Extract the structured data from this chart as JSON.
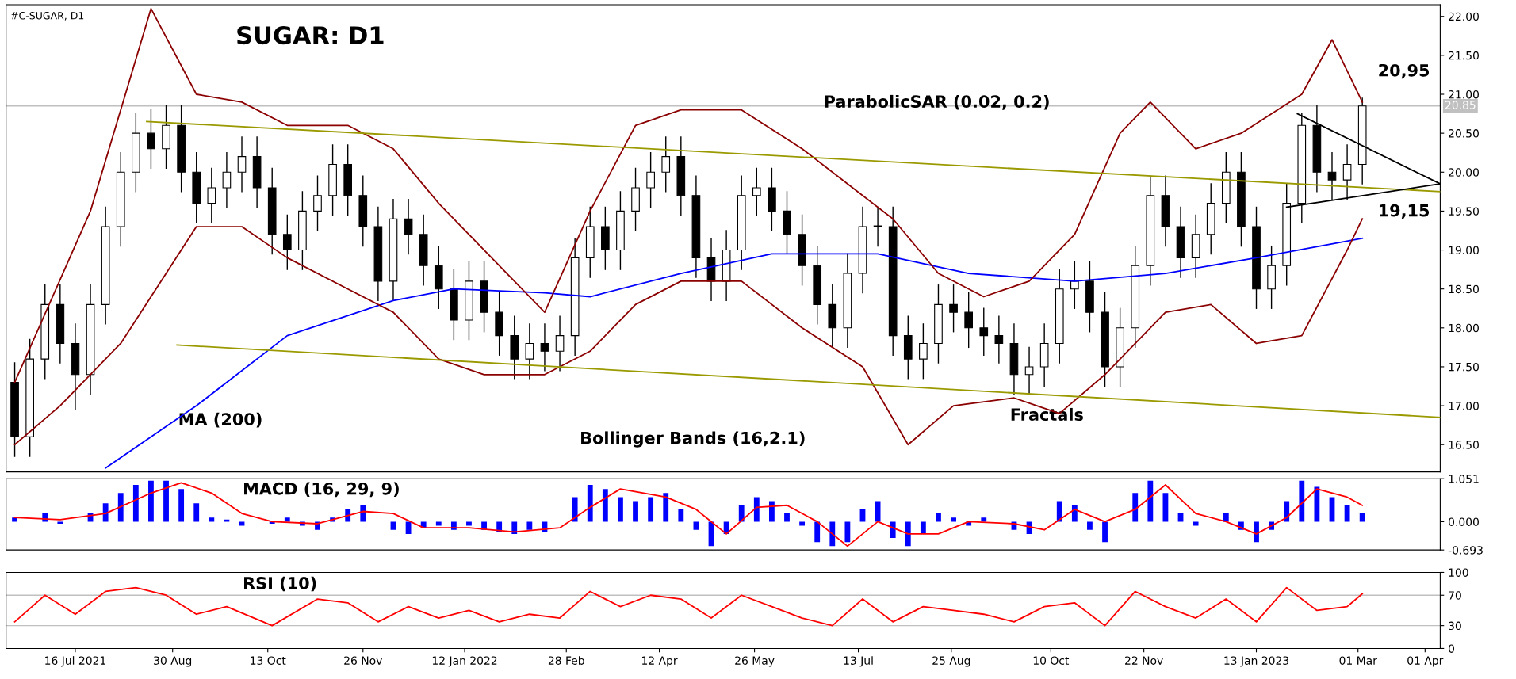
{
  "chart_data": [
    {
      "type": "candlestick",
      "title": "SUGAR: D1",
      "subtitle": "#C-SUGAR, D1",
      "x": [
        "2021-06-18",
        "2021-06-25",
        "2021-07-02",
        "2021-07-09",
        "2021-07-16",
        "2021-07-23",
        "2021-07-30",
        "2021-08-06",
        "2021-08-13",
        "2021-08-20",
        "2021-08-27",
        "2021-09-03",
        "2021-09-10",
        "2021-09-17",
        "2021-09-24",
        "2021-10-01",
        "2021-10-08",
        "2021-10-15",
        "2021-10-22",
        "2021-10-29",
        "2021-11-05",
        "2021-11-12",
        "2021-11-19",
        "2021-11-26",
        "2021-12-03",
        "2021-12-10",
        "2021-12-17",
        "2021-12-24",
        "2021-12-31",
        "2022-01-07",
        "2022-01-14",
        "2022-01-21",
        "2022-01-28",
        "2022-02-04",
        "2022-02-11",
        "2022-02-18",
        "2022-02-25",
        "2022-03-04",
        "2022-03-11",
        "2022-03-18",
        "2022-03-25",
        "2022-04-01",
        "2022-04-08",
        "2022-04-15",
        "2022-04-22",
        "2022-04-29",
        "2022-05-06",
        "2022-05-13",
        "2022-05-20",
        "2022-05-27",
        "2022-06-03",
        "2022-06-10",
        "2022-06-17",
        "2022-06-24",
        "2022-07-01",
        "2022-07-08",
        "2022-07-15",
        "2022-07-22",
        "2022-07-29",
        "2022-08-05",
        "2022-08-12",
        "2022-08-19",
        "2022-08-26",
        "2022-09-02",
        "2022-09-09",
        "2022-09-16",
        "2022-09-23",
        "2022-09-30",
        "2022-10-07",
        "2022-10-14",
        "2022-10-21",
        "2022-10-28",
        "2022-11-04",
        "2022-11-11",
        "2022-11-18",
        "2022-11-25",
        "2022-12-02",
        "2022-12-09",
        "2022-12-16",
        "2022-12-23",
        "2022-12-30",
        "2023-01-06",
        "2023-01-13",
        "2023-01-20",
        "2023-01-27",
        "2023-02-03",
        "2023-02-10",
        "2023-02-17",
        "2023-02-24",
        "2023-03-03"
      ],
      "ohlc": [
        [
          17.3,
          17.55,
          16.35,
          16.6
        ],
        [
          16.6,
          17.85,
          16.35,
          17.6
        ],
        [
          17.6,
          18.55,
          17.35,
          18.3
        ],
        [
          18.3,
          18.55,
          17.55,
          17.8
        ],
        [
          17.8,
          18.05,
          16.95,
          17.4
        ],
        [
          17.4,
          18.55,
          17.15,
          18.3
        ],
        [
          18.3,
          19.55,
          18.05,
          19.3
        ],
        [
          19.3,
          20.25,
          19.05,
          20.0
        ],
        [
          20.0,
          20.75,
          19.75,
          20.5
        ],
        [
          20.5,
          20.8,
          20.05,
          20.3
        ],
        [
          20.3,
          20.85,
          20.05,
          20.6
        ],
        [
          20.6,
          20.85,
          19.75,
          20.0
        ],
        [
          20.0,
          20.25,
          19.35,
          19.6
        ],
        [
          19.6,
          20.05,
          19.35,
          19.8
        ],
        [
          19.8,
          20.25,
          19.55,
          20.0
        ],
        [
          20.0,
          20.45,
          19.75,
          20.2
        ],
        [
          20.2,
          20.45,
          19.55,
          19.8
        ],
        [
          19.8,
          20.05,
          18.95,
          19.2
        ],
        [
          19.2,
          19.45,
          18.75,
          19.0
        ],
        [
          19.0,
          19.75,
          18.75,
          19.5
        ],
        [
          19.5,
          19.95,
          19.25,
          19.7
        ],
        [
          19.7,
          20.35,
          19.45,
          20.1
        ],
        [
          20.1,
          20.35,
          19.45,
          19.7
        ],
        [
          19.7,
          19.95,
          19.05,
          19.3
        ],
        [
          19.3,
          19.55,
          18.35,
          18.6
        ],
        [
          18.6,
          19.65,
          18.35,
          19.4
        ],
        [
          19.4,
          19.65,
          18.95,
          19.2
        ],
        [
          19.2,
          19.45,
          18.55,
          18.8
        ],
        [
          18.8,
          19.05,
          18.25,
          18.5
        ],
        [
          18.5,
          18.75,
          17.85,
          18.1
        ],
        [
          18.1,
          18.85,
          17.85,
          18.6
        ],
        [
          18.6,
          18.85,
          17.95,
          18.2
        ],
        [
          18.2,
          18.45,
          17.65,
          17.9
        ],
        [
          17.9,
          18.15,
          17.35,
          17.6
        ],
        [
          17.6,
          18.05,
          17.35,
          17.8
        ],
        [
          17.8,
          18.05,
          17.45,
          17.7
        ],
        [
          17.7,
          18.15,
          17.45,
          17.9
        ],
        [
          17.9,
          19.15,
          17.65,
          18.9
        ],
        [
          18.9,
          19.55,
          18.65,
          19.3
        ],
        [
          19.3,
          19.55,
          18.75,
          19.0
        ],
        [
          19.0,
          19.75,
          18.75,
          19.5
        ],
        [
          19.5,
          20.05,
          19.25,
          19.8
        ],
        [
          19.8,
          20.25,
          19.55,
          20.0
        ],
        [
          20.0,
          20.45,
          19.75,
          20.2
        ],
        [
          20.2,
          20.45,
          19.45,
          19.7
        ],
        [
          19.7,
          19.95,
          18.65,
          18.9
        ],
        [
          18.9,
          19.15,
          18.35,
          18.6
        ],
        [
          18.6,
          19.25,
          18.35,
          19.0
        ],
        [
          19.0,
          19.95,
          18.75,
          19.7
        ],
        [
          19.7,
          20.05,
          19.45,
          19.8
        ],
        [
          19.8,
          20.05,
          19.25,
          19.5
        ],
        [
          19.5,
          19.75,
          18.95,
          19.2
        ],
        [
          19.2,
          19.45,
          18.55,
          18.8
        ],
        [
          18.8,
          19.05,
          18.05,
          18.3
        ],
        [
          18.3,
          18.55,
          17.75,
          18.0
        ],
        [
          18.0,
          18.95,
          17.75,
          18.7
        ],
        [
          18.7,
          19.55,
          18.45,
          19.3
        ],
        [
          19.3,
          19.55,
          19.05,
          19.3
        ],
        [
          19.3,
          19.55,
          17.65,
          17.9
        ],
        [
          17.9,
          18.15,
          17.35,
          17.6
        ],
        [
          17.6,
          18.05,
          17.35,
          17.8
        ],
        [
          17.8,
          18.55,
          17.55,
          18.3
        ],
        [
          18.3,
          18.55,
          17.95,
          18.2
        ],
        [
          18.2,
          18.45,
          17.75,
          18.0
        ],
        [
          18.0,
          18.25,
          17.65,
          17.9
        ],
        [
          17.9,
          18.15,
          17.55,
          17.8
        ],
        [
          17.8,
          18.05,
          17.15,
          17.4
        ],
        [
          17.4,
          17.75,
          17.15,
          17.5
        ],
        [
          17.5,
          18.05,
          17.25,
          17.8
        ],
        [
          17.8,
          18.75,
          17.55,
          18.5
        ],
        [
          18.5,
          18.85,
          18.25,
          18.6
        ],
        [
          18.6,
          18.85,
          17.95,
          18.2
        ],
        [
          18.2,
          18.45,
          17.25,
          17.5
        ],
        [
          17.5,
          18.25,
          17.25,
          18.0
        ],
        [
          18.0,
          19.05,
          17.75,
          18.8
        ],
        [
          18.8,
          19.95,
          18.55,
          19.7
        ],
        [
          19.7,
          19.95,
          19.05,
          19.3
        ],
        [
          19.3,
          19.55,
          18.65,
          18.9
        ],
        [
          18.9,
          19.45,
          18.65,
          19.2
        ],
        [
          19.2,
          19.85,
          18.95,
          19.6
        ],
        [
          19.6,
          20.25,
          19.35,
          20.0
        ],
        [
          20.0,
          20.25,
          19.05,
          19.3
        ],
        [
          19.3,
          19.55,
          18.25,
          18.5
        ],
        [
          18.5,
          19.05,
          18.25,
          18.8
        ],
        [
          18.8,
          19.85,
          18.55,
          19.6
        ],
        [
          19.6,
          20.75,
          19.35,
          20.6
        ],
        [
          20.6,
          20.85,
          19.75,
          20.0
        ],
        [
          20.0,
          20.25,
          19.65,
          19.9
        ],
        [
          19.9,
          20.35,
          19.65,
          20.1
        ],
        [
          20.1,
          20.95,
          19.85,
          20.85
        ]
      ],
      "series": [
        {
          "type": "line",
          "color": "#0000ff",
          "x": [
            "2021-07-30",
            "2021-09-10",
            "2021-10-22",
            "2021-12-10",
            "2022-01-07",
            "2022-02-18",
            "2022-03-11",
            "2022-04-22",
            "2022-06-03",
            "2022-07-22",
            "2022-09-02",
            "2022-10-21",
            "2022-12-02",
            "2023-01-13",
            "2023-03-03"
          ],
          "values": [
            16.2,
            17.0,
            17.9,
            18.35,
            18.5,
            18.45,
            18.4,
            18.7,
            18.95,
            18.95,
            18.7,
            18.6,
            18.7,
            18.9,
            19.15
          ]
        },
        {
          "type": "line",
          "color": "#8b0000",
          "x": [
            "2021-06-18",
            "2021-07-23",
            "2021-08-20",
            "2021-09-10",
            "2021-10-01",
            "2021-10-22",
            "2021-11-19",
            "2021-12-10",
            "2021-12-31",
            "2022-01-21",
            "2022-02-18",
            "2022-03-11",
            "2022-04-01",
            "2022-04-22",
            "2022-05-20",
            "2022-06-17",
            "2022-07-15",
            "2022-07-29",
            "2022-08-19",
            "2022-09-09",
            "2022-09-30",
            "2022-10-21",
            "2022-11-11",
            "2022-11-25",
            "2022-12-16",
            "2023-01-06",
            "2023-02-03",
            "2023-02-17",
            "2023-03-03"
          ],
          "values": [
            17.3,
            19.5,
            22.1,
            21.0,
            20.9,
            20.6,
            20.6,
            20.3,
            19.6,
            19.0,
            18.2,
            19.5,
            20.6,
            20.8,
            20.8,
            20.3,
            19.7,
            19.4,
            18.7,
            18.4,
            18.6,
            19.2,
            20.5,
            20.9,
            20.3,
            20.5,
            21.0,
            21.7,
            20.9
          ]
        },
        {
          "type": "line",
          "color": "#8b0000",
          "x": [
            "2021-06-18",
            "2021-07-09",
            "2021-08-06",
            "2021-09-10",
            "2021-10-01",
            "2021-10-22",
            "2021-11-19",
            "2021-12-10",
            "2021-12-31",
            "2022-01-21",
            "2022-02-18",
            "2022-03-11",
            "2022-04-01",
            "2022-04-22",
            "2022-05-20",
            "2022-06-17",
            "2022-07-15",
            "2022-08-05",
            "2022-08-26",
            "2022-09-23",
            "2022-10-14",
            "2022-11-04",
            "2022-12-02",
            "2022-12-23",
            "2023-01-13",
            "2023-02-03",
            "2023-02-24",
            "2023-03-03"
          ],
          "values": [
            16.5,
            17.0,
            17.8,
            19.3,
            19.3,
            18.9,
            18.5,
            18.2,
            17.6,
            17.4,
            17.4,
            17.7,
            18.3,
            18.6,
            18.6,
            18.0,
            17.5,
            16.5,
            17.0,
            17.1,
            16.9,
            17.4,
            18.2,
            18.3,
            17.8,
            17.9,
            19.0,
            19.4
          ]
        },
        {
          "type": "line",
          "color": "#9a9a00",
          "x": [
            "2021-08-18",
            "2023-04-08"
          ],
          "values": [
            20.65,
            19.75
          ]
        },
        {
          "type": "line",
          "color": "#9a9a00",
          "x": [
            "2021-09-01",
            "2023-04-08"
          ],
          "values": [
            17.78,
            16.85
          ]
        },
        {
          "type": "line",
          "color": "#000000",
          "x": [
            "2023-02-01",
            "2023-04-08"
          ],
          "values": [
            20.75,
            19.85
          ]
        },
        {
          "type": "line",
          "color": "#000000",
          "x": [
            "2023-01-27",
            "2023-04-08"
          ],
          "values": [
            19.55,
            19.85
          ]
        }
      ],
      "annotations": [
        "MA (200)",
        "Bollinger Bands (16,2.1)",
        "ParabolicSAR (0.02, 0.2)",
        "Fractals",
        {
          "text": "20,95",
          "x": "2023-03-03",
          "y": 20.95
        },
        {
          "text": "19,15",
          "x": "2023-03-03",
          "y": 19.15
        }
      ],
      "ref_lines": [
        {
          "axis": "y",
          "value": 20.85,
          "label": "20.85",
          "color": "#c0c0c0"
        }
      ],
      "xlim": [
        "2021-06-14",
        "2023-04-08"
      ],
      "ylim": [
        16.15,
        22.15
      ],
      "yticks": [
        {
          "value": 16.5,
          "label": "16.50"
        },
        {
          "value": 17.0,
          "label": "17.00"
        },
        {
          "value": 17.5,
          "label": "17.50"
        },
        {
          "value": 18.0,
          "label": "18.00"
        },
        {
          "value": 18.5,
          "label": "18.50"
        },
        {
          "value": 19.0,
          "label": "19.00"
        },
        {
          "value": 19.5,
          "label": "19.50"
        },
        {
          "value": 20.0,
          "label": "20.00"
        },
        {
          "value": 20.5,
          "label": "20.50"
        },
        {
          "value": 21.0,
          "label": "21.00"
        },
        {
          "value": 21.5,
          "label": "21.50"
        },
        {
          "value": 22.0,
          "label": "22.00"
        }
      ],
      "tick_labels": "y",
      "grid": false,
      "legend": false
    },
    {
      "type": "bar",
      "title": "MACD (16, 29, 9)",
      "x": [
        "2021-06-18",
        "2021-06-25",
        "2021-07-02",
        "2021-07-09",
        "2021-07-16",
        "2021-07-23",
        "2021-07-30",
        "2021-08-06",
        "2021-08-13",
        "2021-08-20",
        "2021-08-27",
        "2021-09-03",
        "2021-09-10",
        "2021-09-17",
        "2021-09-24",
        "2021-10-01",
        "2021-10-08",
        "2021-10-15",
        "2021-10-22",
        "2021-10-29",
        "2021-11-05",
        "2021-11-12",
        "2021-11-19",
        "2021-11-26",
        "2021-12-03",
        "2021-12-10",
        "2021-12-17",
        "2021-12-24",
        "2021-12-31",
        "2022-01-07",
        "2022-01-14",
        "2022-01-21",
        "2022-01-28",
        "2022-02-04",
        "2022-02-11",
        "2022-02-18",
        "2022-02-25",
        "2022-03-04",
        "2022-03-11",
        "2022-03-18",
        "2022-03-25",
        "2022-04-01",
        "2022-04-08",
        "2022-04-15",
        "2022-04-22",
        "2022-04-29",
        "2022-05-06",
        "2022-05-13",
        "2022-05-20",
        "2022-05-27",
        "2022-06-03",
        "2022-06-10",
        "2022-06-17",
        "2022-06-24",
        "2022-07-01",
        "2022-07-08",
        "2022-07-15",
        "2022-07-22",
        "2022-07-29",
        "2022-08-05",
        "2022-08-12",
        "2022-08-19",
        "2022-08-26",
        "2022-09-02",
        "2022-09-09",
        "2022-09-16",
        "2022-09-23",
        "2022-09-30",
        "2022-10-07",
        "2022-10-14",
        "2022-10-21",
        "2022-10-28",
        "2022-11-04",
        "2022-11-11",
        "2022-11-18",
        "2022-11-25",
        "2022-12-02",
        "2022-12-09",
        "2022-12-16",
        "2022-12-23",
        "2022-12-30",
        "2023-01-06",
        "2023-01-13",
        "2023-01-20",
        "2023-01-27",
        "2023-02-03",
        "2023-02-10",
        "2023-02-17",
        "2023-02-24",
        "2023-03-03"
      ],
      "series": [
        {
          "type": "bar",
          "color": "#0000ff",
          "values": [
            0.1,
            0.0,
            0.2,
            -0.05,
            0.0,
            0.2,
            0.45,
            0.7,
            0.9,
            1.0,
            1.0,
            0.8,
            0.45,
            0.1,
            0.05,
            -0.1,
            0.0,
            -0.05,
            0.1,
            -0.1,
            -0.2,
            0.1,
            0.3,
            0.4,
            0.0,
            -0.2,
            -0.3,
            -0.15,
            -0.1,
            -0.2,
            -0.1,
            -0.2,
            -0.25,
            -0.3,
            -0.2,
            -0.25,
            0.0,
            0.6,
            0.9,
            0.8,
            0.6,
            0.5,
            0.6,
            0.7,
            0.3,
            -0.2,
            -0.6,
            -0.3,
            0.4,
            0.6,
            0.5,
            0.2,
            -0.1,
            -0.5,
            -0.6,
            -0.5,
            0.3,
            0.5,
            -0.4,
            -0.6,
            -0.3,
            0.2,
            0.1,
            -0.1,
            0.1,
            0.0,
            -0.2,
            -0.3,
            0.0,
            0.5,
            0.4,
            -0.2,
            -0.5,
            0.0,
            0.7,
            1.0,
            0.7,
            0.2,
            -0.1,
            0.0,
            0.2,
            -0.2,
            -0.5,
            -0.2,
            0.5,
            1.0,
            0.85,
            0.6,
            0.4,
            0.2
          ]
        },
        {
          "type": "line",
          "color": "#ff0000",
          "x": [
            "2021-06-18",
            "2021-07-09",
            "2021-07-30",
            "2021-08-20",
            "2021-09-03",
            "2021-09-17",
            "2021-10-01",
            "2021-10-15",
            "2021-11-05",
            "2021-11-26",
            "2021-12-10",
            "2021-12-24",
            "2022-01-14",
            "2022-02-04",
            "2022-02-25",
            "2022-03-11",
            "2022-03-25",
            "2022-04-15",
            "2022-04-29",
            "2022-05-13",
            "2022-05-27",
            "2022-06-10",
            "2022-06-24",
            "2022-07-08",
            "2022-07-22",
            "2022-08-05",
            "2022-08-19",
            "2022-09-02",
            "2022-09-23",
            "2022-10-07",
            "2022-10-21",
            "2022-11-04",
            "2022-11-18",
            "2022-12-02",
            "2022-12-16",
            "2022-12-30",
            "2023-01-13",
            "2023-01-27",
            "2023-02-10",
            "2023-02-24",
            "2023-03-03"
          ],
          "values": [
            0.1,
            0.05,
            0.2,
            0.7,
            0.95,
            0.7,
            0.2,
            0.0,
            -0.05,
            0.25,
            0.2,
            -0.15,
            -0.15,
            -0.25,
            -0.15,
            0.35,
            0.8,
            0.6,
            0.3,
            -0.3,
            0.35,
            0.4,
            0.0,
            -0.6,
            0.0,
            -0.3,
            -0.3,
            0.0,
            -0.05,
            -0.2,
            0.3,
            0.0,
            0.3,
            0.9,
            0.2,
            0.0,
            -0.3,
            0.1,
            0.8,
            0.6,
            0.4
          ]
        }
      ],
      "xlim": [
        "2021-06-14",
        "2023-04-08"
      ],
      "ylim": [
        -0.693,
        1.051
      ],
      "yticks": [
        {
          "value": -0.693,
          "label": "-0.693"
        },
        {
          "value": 0.0,
          "label": "0.000"
        },
        {
          "value": 1.051,
          "label": "1.051"
        }
      ],
      "tick_labels": "y",
      "grid": false,
      "legend": false
    },
    {
      "type": "line",
      "title": "RSI (10)",
      "x": [
        "2021-06-18",
        "2021-07-02",
        "2021-07-16",
        "2021-07-30",
        "2021-08-13",
        "2021-08-27",
        "2021-09-10",
        "2021-09-24",
        "2021-10-15",
        "2021-11-05",
        "2021-11-19",
        "2021-12-03",
        "2021-12-17",
        "2021-12-31",
        "2022-01-14",
        "2022-01-28",
        "2022-02-11",
        "2022-02-25",
        "2022-03-11",
        "2022-03-25",
        "2022-04-08",
        "2022-04-22",
        "2022-05-06",
        "2022-05-20",
        "2022-06-03",
        "2022-06-17",
        "2022-07-01",
        "2022-07-15",
        "2022-07-29",
        "2022-08-12",
        "2022-08-26",
        "2022-09-09",
        "2022-09-23",
        "2022-10-07",
        "2022-10-21",
        "2022-11-04",
        "2022-11-18",
        "2022-12-02",
        "2022-12-16",
        "2022-12-30",
        "2023-01-13",
        "2023-01-27",
        "2023-02-10",
        "2023-02-24",
        "2023-03-03"
      ],
      "series": [
        {
          "type": "line",
          "color": "#ff0000",
          "values": [
            35,
            70,
            45,
            75,
            80,
            70,
            45,
            55,
            30,
            65,
            60,
            35,
            55,
            40,
            50,
            35,
            45,
            40,
            75,
            55,
            70,
            65,
            40,
            70,
            55,
            40,
            30,
            65,
            35,
            55,
            50,
            45,
            35,
            55,
            60,
            30,
            75,
            55,
            40,
            65,
            35,
            80,
            50,
            55,
            72
          ]
        }
      ],
      "ref_lines": [
        {
          "axis": "y",
          "value": 30,
          "color": "#c0c0c0"
        },
        {
          "axis": "y",
          "value": 70,
          "color": "#c0c0c0"
        }
      ],
      "xlim": [
        "2021-06-14",
        "2023-04-08"
      ],
      "xticks": [
        {
          "value": "2021-07-16",
          "label": "16 Jul 2021"
        },
        {
          "value": "2021-08-30",
          "label": "30 Aug"
        },
        {
          "value": "2021-10-13",
          "label": "13 Oct"
        },
        {
          "value": "2021-11-26",
          "label": "26 Nov"
        },
        {
          "value": "2022-01-12",
          "label": "12 Jan 2022"
        },
        {
          "value": "2022-02-28",
          "label": "28 Feb"
        },
        {
          "value": "2022-04-12",
          "label": "12 Apr"
        },
        {
          "value": "2022-05-26",
          "label": "26 May"
        },
        {
          "value": "2022-07-13",
          "label": "13 Jul"
        },
        {
          "value": "2022-08-25",
          "label": "25 Aug"
        },
        {
          "value": "2022-10-10",
          "label": "10 Oct"
        },
        {
          "value": "2022-11-22",
          "label": "22 Nov"
        },
        {
          "value": "2023-01-13",
          "label": "13 Jan 2023"
        },
        {
          "value": "2023-03-01",
          "label": "01 Mar"
        },
        {
          "value": "2023-04-01",
          "label": "01 Apr"
        }
      ],
      "ylim": [
        0,
        100
      ],
      "yticks": [
        0,
        30,
        70,
        100
      ],
      "grid": false,
      "legend": false
    }
  ]
}
